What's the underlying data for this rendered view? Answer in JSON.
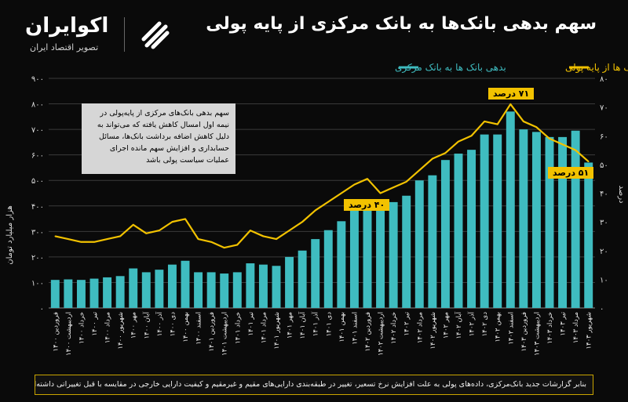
{
  "header": {
    "title": "سهم بدهی بانک‌ها به بانک مرکزی از پایه پولی",
    "logo_name": "اکوایران",
    "logo_tagline": "تصویر اقتصاد ایران"
  },
  "note": "سهم بدهی بانک‌های مرکزی از پایه‌پولی در نیمه اول امسال کاهش یافته که می‌تواند به دلیل کاهش اضافه برداشت بانک‌ها، مسائل حسابداری و افزایش سهم مانده اجرای عملیات سیاست پولی باشد",
  "footer": "بنابر گزارشات جدید بانک‌مرکزی، داده‌های پولی به علت افزایش نرخ تسعیر، تغییر در طبقه‌بندی دارایی‌های مقیم و غیرمقیم و کیفیت دارایی خارجی در مقایسه با قبل تغییراتی داشته‌اند",
  "annotations": {
    "a40": "۴۰ درصد",
    "a71": "۷۱ درصد",
    "a51": "۵۱ درصد"
  },
  "colors": {
    "bar": "#3fbcc0",
    "line": "#f2c200",
    "note_bg": "#d6d6d6"
  },
  "chart_data": {
    "type": "bar",
    "legend": [
      "سهم بدهی بانک ها از پایه پولی",
      "بدهی بانک ها به بانک مرکزی"
    ],
    "legend_position": "top-right",
    "ylabel_left": "هزار میلیارد تومان",
    "ylabel_right": "درصد",
    "ylim_left": [
      0,
      900
    ],
    "ylim_right": [
      0,
      80
    ],
    "yticks_left": [
      "۰",
      "۱۰۰",
      "۲۰۰",
      "۳۰۰",
      "۴۰۰",
      "۵۰۰",
      "۶۰۰",
      "۷۰۰",
      "۸۰۰",
      "۹۰۰"
    ],
    "yticks_right": [
      "۰",
      "۱۰",
      "۲۰",
      "۳۰",
      "۴۰",
      "۵۰",
      "۶۰",
      "۷۰",
      "۸۰"
    ],
    "categories": [
      "فروردین ۱۴۰۰",
      "اردیبهشت ۱۴۰۰",
      "خرداد ۱۴۰۰",
      "تیر ۱۴۰۰",
      "مرداد ۱۴۰۰",
      "شهریور ۱۴۰۰",
      "مهر ۱۴۰۰",
      "آبان ۱۴۰۰",
      "آذر ۱۴۰۰",
      "دی ۱۴۰۰",
      "بهمن ۱۴۰۰",
      "اسفند ۱۴۰۰",
      "فروردین ۱۴۰۱",
      "اردیبهشت ۱۴۰۱",
      "خرداد ۱۴۰۱",
      "تیر ۱۴۰۱",
      "مرداد ۱۴۰۱",
      "شهریور ۱۴۰۱",
      "مهر ۱۴۰۱",
      "آبان ۱۴۰۱",
      "آذر ۱۴۰۱",
      "دی ۱۴۰۱",
      "بهمن ۱۴۰۱",
      "اسفند ۱۴۰۱",
      "فروردین ۱۴۰۲",
      "اردیبهشت ۱۴۰۲",
      "خرداد ۱۴۰۲",
      "تیر ۱۴۰۲",
      "مرداد ۱۴۰۲",
      "شهریور ۱۴۰۲",
      "مهر ۱۴۰۲",
      "آبان ۱۴۰۲",
      "آذر ۱۴۰۲",
      "دی ۱۴۰۲",
      "بهمن ۱۴۰۲",
      "اسفند ۱۴۰۲",
      "فروردین ۱۴۰۳",
      "اردیبهشت ۱۴۰۳",
      "خرداد ۱۴۰۳",
      "تیر ۱۴۰۳",
      "مرداد ۱۴۰۳",
      "شهریور ۱۴۰۳"
    ],
    "series": [
      {
        "name": "بدهی بانک ها به بانک مرکزی",
        "type": "bar",
        "values": [
          110,
          112,
          110,
          115,
          120,
          125,
          155,
          140,
          150,
          170,
          185,
          140,
          140,
          135,
          140,
          175,
          170,
          165,
          200,
          225,
          270,
          305,
          340,
          400,
          400,
          390,
          415,
          440,
          500,
          520,
          580,
          605,
          620,
          680,
          680,
          770,
          700,
          690,
          670,
          670,
          695,
          570
        ]
      },
      {
        "name": "سهم بدهی بانک ها از پایه پولی",
        "type": "line",
        "values": [
          25,
          24,
          23,
          23,
          24,
          25,
          29,
          26,
          27,
          30,
          31,
          24,
          23,
          21,
          22,
          27,
          25,
          24,
          27,
          30,
          34,
          37,
          40,
          43,
          45,
          40,
          42,
          44,
          48,
          52,
          54,
          58,
          60,
          65,
          64,
          71,
          65,
          63,
          59,
          57,
          55,
          51
        ]
      }
    ]
  }
}
